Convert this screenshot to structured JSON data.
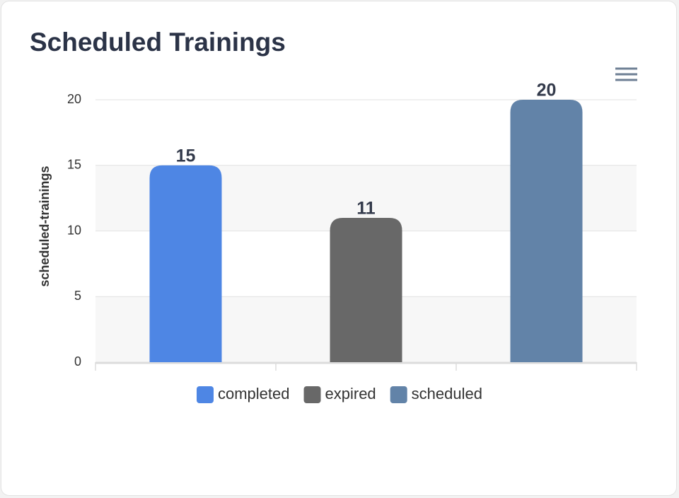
{
  "chart_data": {
    "type": "bar",
    "title": "Scheduled Trainings",
    "categories": [
      "completed",
      "expired",
      "scheduled"
    ],
    "values": [
      15,
      11,
      20
    ],
    "colors": [
      "#4e86e4",
      "#686868",
      "#6283a8"
    ],
    "ylabel": "scheduled-trainings",
    "ylim": [
      0,
      20
    ],
    "yticks": [
      0,
      5,
      10,
      15,
      20
    ],
    "grid": true,
    "legend": "bottom"
  }
}
